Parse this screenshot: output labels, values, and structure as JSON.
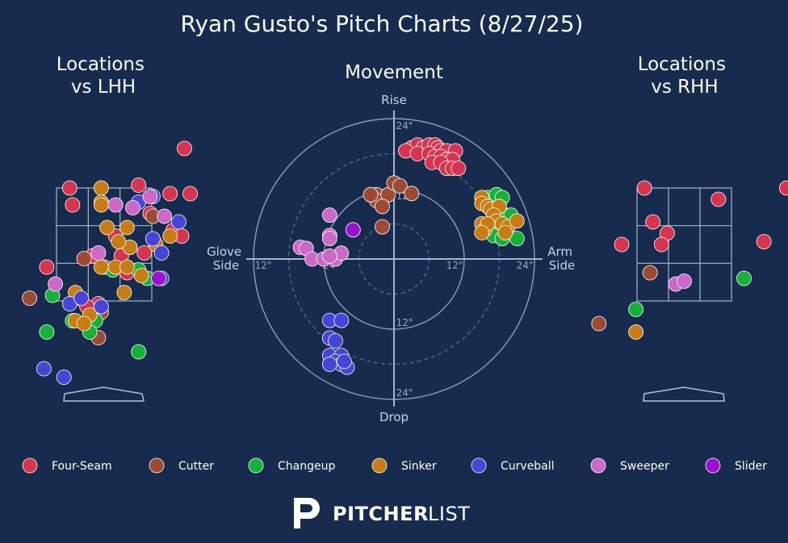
{
  "title": "Ryan Gusto's Pitch Charts (8/27/25)",
  "brand": {
    "bold": "PITCHER",
    "light": "LIST"
  },
  "colors": {
    "background": "#162b4d",
    "Four-Seam": "#d7344f",
    "Cutter": "#9c4a34",
    "Changeup": "#16b238",
    "Sinker": "#c77d12",
    "Curveball": "#4645d8",
    "Sweeper": "#cc68c8",
    "Slider": "#9a12cf"
  },
  "legend": [
    "Four-Seam",
    "Cutter",
    "Changeup",
    "Sinker",
    "Curveball",
    "Sweeper",
    "Slider"
  ],
  "chart_data": [
    {
      "type": "scatter",
      "title": "Locations\nvs LHH",
      "xlim": [
        -2.5,
        2.5
      ],
      "ylim": [
        -0.5,
        5.0
      ],
      "points": [
        {
          "pitch": "Four-Seam",
          "x": 1.4,
          "y": 4.2
        },
        {
          "pitch": "Four-Seam",
          "x": 0.6,
          "y": 3.55
        },
        {
          "pitch": "Four-Seam",
          "x": -0.6,
          "y": 3.5
        },
        {
          "pitch": "Four-Seam",
          "x": 1.15,
          "y": 3.4
        },
        {
          "pitch": "Four-Seam",
          "x": -0.55,
          "y": 3.2
        },
        {
          "pitch": "Four-Seam",
          "x": 0.8,
          "y": 3.05
        },
        {
          "pitch": "Four-Seam",
          "x": 1.5,
          "y": 3.4
        },
        {
          "pitch": "Four-Seam",
          "x": 0.2,
          "y": 2.65
        },
        {
          "pitch": "Four-Seam",
          "x": 0.45,
          "y": 2.45
        },
        {
          "pitch": "Four-Seam",
          "x": 0.7,
          "y": 2.35
        },
        {
          "pitch": "Four-Seam",
          "x": 0.3,
          "y": 2.3
        },
        {
          "pitch": "Four-Seam",
          "x": -0.2,
          "y": 2.3
        },
        {
          "pitch": "Four-Seam",
          "x": -1.0,
          "y": 2.1
        },
        {
          "pitch": "Four-Seam",
          "x": 0.0,
          "y": 2.1
        },
        {
          "pitch": "Four-Seam",
          "x": 0.4,
          "y": 2.0
        },
        {
          "pitch": "Four-Seam",
          "x": 1.2,
          "y": 2.75
        },
        {
          "pitch": "Four-Seam",
          "x": 1.35,
          "y": 2.65
        },
        {
          "pitch": "Four-Seam",
          "x": -0.45,
          "y": 1.55
        },
        {
          "pitch": "Four-Seam",
          "x": -0.1,
          "y": 1.45
        },
        {
          "pitch": "Four-Seam",
          "x": -0.3,
          "y": 1.4
        },
        {
          "pitch": "Cutter",
          "x": -0.35,
          "y": 2.25
        },
        {
          "pitch": "Cutter",
          "x": 0.85,
          "y": 3.0
        },
        {
          "pitch": "Cutter",
          "x": -1.3,
          "y": 1.55
        },
        {
          "pitch": "Cutter",
          "x": -0.05,
          "y": 1.3
        },
        {
          "pitch": "Cutter",
          "x": -0.1,
          "y": 0.85
        },
        {
          "pitch": "Changeup",
          "x": 0.75,
          "y": 1.9
        },
        {
          "pitch": "Changeup",
          "x": 0.6,
          "y": 2.05
        },
        {
          "pitch": "Changeup",
          "x": 0.15,
          "y": 2.05
        },
        {
          "pitch": "Changeup",
          "x": -0.9,
          "y": 1.6
        },
        {
          "pitch": "Changeup",
          "x": -0.15,
          "y": 1.15
        },
        {
          "pitch": "Changeup",
          "x": -0.55,
          "y": 1.15
        },
        {
          "pitch": "Changeup",
          "x": -1.0,
          "y": 0.95
        },
        {
          "pitch": "Changeup",
          "x": -0.25,
          "y": 0.95
        },
        {
          "pitch": "Changeup",
          "x": 0.6,
          "y": 0.6
        },
        {
          "pitch": "Sinker",
          "x": -0.05,
          "y": 3.5
        },
        {
          "pitch": "Sinker",
          "x": -0.05,
          "y": 3.25
        },
        {
          "pitch": "Sinker",
          "x": -0.05,
          "y": 3.2
        },
        {
          "pitch": "Sinker",
          "x": 0.05,
          "y": 2.8
        },
        {
          "pitch": "Sinker",
          "x": 0.4,
          "y": 2.8
        },
        {
          "pitch": "Sinker",
          "x": 0.45,
          "y": 2.45
        },
        {
          "pitch": "Sinker",
          "x": 1.15,
          "y": 2.65
        },
        {
          "pitch": "Sinker",
          "x": 0.9,
          "y": 2.5
        },
        {
          "pitch": "Sinker",
          "x": 0.25,
          "y": 2.55
        },
        {
          "pitch": "Sinker",
          "x": -0.05,
          "y": 2.1
        },
        {
          "pitch": "Sinker",
          "x": 0.2,
          "y": 2.1
        },
        {
          "pitch": "Sinker",
          "x": 0.4,
          "y": 2.1
        },
        {
          "pitch": "Sinker",
          "x": 0.65,
          "y": 1.95
        },
        {
          "pitch": "Sinker",
          "x": -0.5,
          "y": 1.65
        },
        {
          "pitch": "Sinker",
          "x": 0.35,
          "y": 1.65
        },
        {
          "pitch": "Sinker",
          "x": -0.25,
          "y": 1.25
        },
        {
          "pitch": "Sinker",
          "x": -0.5,
          "y": 1.15
        },
        {
          "pitch": "Sinker",
          "x": -0.35,
          "y": 1.1
        },
        {
          "pitch": "Curveball",
          "x": 0.6,
          "y": 3.25
        },
        {
          "pitch": "Curveball",
          "x": 0.85,
          "y": 3.35
        },
        {
          "pitch": "Curveball",
          "x": 0.85,
          "y": 2.6
        },
        {
          "pitch": "Curveball",
          "x": 1.0,
          "y": 2.35
        },
        {
          "pitch": "Curveball",
          "x": 1.3,
          "y": 2.9
        },
        {
          "pitch": "Curveball",
          "x": 1.0,
          "y": 1.9
        },
        {
          "pitch": "Curveball",
          "x": -0.6,
          "y": 1.45
        },
        {
          "pitch": "Curveball",
          "x": -0.4,
          "y": 1.55
        },
        {
          "pitch": "Curveball",
          "x": -0.05,
          "y": 1.4
        },
        {
          "pitch": "Curveball",
          "x": -0.7,
          "y": 0.15
        },
        {
          "pitch": "Curveball",
          "x": -1.05,
          "y": 0.3
        },
        {
          "pitch": "Sweeper",
          "x": 0.8,
          "y": 3.35
        },
        {
          "pitch": "Sweeper",
          "x": 0.5,
          "y": 3.15
        },
        {
          "pitch": "Sweeper",
          "x": 0.2,
          "y": 3.2
        },
        {
          "pitch": "Sweeper",
          "x": 1.05,
          "y": 3.0
        },
        {
          "pitch": "Sweeper",
          "x": -0.1,
          "y": 2.35
        },
        {
          "pitch": "Sweeper",
          "x": -0.85,
          "y": 1.8
        },
        {
          "pitch": "Slider",
          "x": 0.95,
          "y": 1.9
        }
      ]
    },
    {
      "type": "scatter",
      "title": "Movement",
      "xlabel_left": "Glove\nSide",
      "xlabel_right": "Arm\nSide",
      "ylabel_top": "Rise",
      "ylabel_bottom": "Drop",
      "ring_labels": [
        "24\"",
        "12\"",
        "12\"",
        "24\"",
        "12\"",
        "24\"",
        "12\"",
        "24\""
      ],
      "range_inches": 24,
      "points": [
        {
          "pitch": "Four-Seam",
          "x": 3,
          "y": 19
        },
        {
          "pitch": "Four-Seam",
          "x": 4,
          "y": 19.5
        },
        {
          "pitch": "Four-Seam",
          "x": 5,
          "y": 19
        },
        {
          "pitch": "Four-Seam",
          "x": 6,
          "y": 19.5
        },
        {
          "pitch": "Four-Seam",
          "x": 7,
          "y": 19.5
        },
        {
          "pitch": "Four-Seam",
          "x": 7.5,
          "y": 19
        },
        {
          "pitch": "Four-Seam",
          "x": 8,
          "y": 18.5
        },
        {
          "pitch": "Four-Seam",
          "x": 9,
          "y": 18.5
        },
        {
          "pitch": "Four-Seam",
          "x": 10.5,
          "y": 18.5
        },
        {
          "pitch": "Four-Seam",
          "x": 2,
          "y": 18.5
        },
        {
          "pitch": "Four-Seam",
          "x": 4,
          "y": 18
        },
        {
          "pitch": "Four-Seam",
          "x": 6,
          "y": 18
        },
        {
          "pitch": "Four-Seam",
          "x": 7,
          "y": 17.5
        },
        {
          "pitch": "Four-Seam",
          "x": 8,
          "y": 17.5
        },
        {
          "pitch": "Four-Seam",
          "x": 9,
          "y": 17
        },
        {
          "pitch": "Four-Seam",
          "x": 10,
          "y": 17
        },
        {
          "pitch": "Four-Seam",
          "x": 6.5,
          "y": 16.5
        },
        {
          "pitch": "Four-Seam",
          "x": 8,
          "y": 16.5
        },
        {
          "pitch": "Four-Seam",
          "x": 9,
          "y": 15.5
        },
        {
          "pitch": "Four-Seam",
          "x": 10,
          "y": 15.5
        },
        {
          "pitch": "Four-Seam",
          "x": 11,
          "y": 15.5
        },
        {
          "pitch": "Cutter",
          "x": -3,
          "y": 11
        },
        {
          "pitch": "Cutter",
          "x": -3,
          "y": 10
        },
        {
          "pitch": "Cutter",
          "x": -4,
          "y": 11
        },
        {
          "pitch": "Cutter",
          "x": -1,
          "y": 11
        },
        {
          "pitch": "Cutter",
          "x": 0,
          "y": 13
        },
        {
          "pitch": "Cutter",
          "x": 1,
          "y": 12.5
        },
        {
          "pitch": "Cutter",
          "x": 3,
          "y": 11.2
        },
        {
          "pitch": "Cutter",
          "x": -2,
          "y": 9
        },
        {
          "pitch": "Cutter",
          "x": -2,
          "y": 5.5
        },
        {
          "pitch": "Changeup",
          "x": 16,
          "y": 10.5
        },
        {
          "pitch": "Changeup",
          "x": 17.5,
          "y": 11
        },
        {
          "pitch": "Changeup",
          "x": 18.5,
          "y": 10.5
        },
        {
          "pitch": "Changeup",
          "x": 18,
          "y": 8
        },
        {
          "pitch": "Changeup",
          "x": 19,
          "y": 7.5
        },
        {
          "pitch": "Changeup",
          "x": 20,
          "y": 7.5
        },
        {
          "pitch": "Changeup",
          "x": 17,
          "y": 4
        },
        {
          "pitch": "Changeup",
          "x": 18.5,
          "y": 3.5
        },
        {
          "pitch": "Changeup",
          "x": 21,
          "y": 3.5
        },
        {
          "pitch": "Sinker",
          "x": 15,
          "y": 10.5
        },
        {
          "pitch": "Sinker",
          "x": 15,
          "y": 9.5
        },
        {
          "pitch": "Sinker",
          "x": 16,
          "y": 9
        },
        {
          "pitch": "Sinker",
          "x": 16.5,
          "y": 8.5
        },
        {
          "pitch": "Sinker",
          "x": 18,
          "y": 9
        },
        {
          "pitch": "Sinker",
          "x": 17,
          "y": 7.5
        },
        {
          "pitch": "Sinker",
          "x": 17.5,
          "y": 6.5
        },
        {
          "pitch": "Sinker",
          "x": 18.5,
          "y": 6
        },
        {
          "pitch": "Sinker",
          "x": 19.5,
          "y": 5.5
        },
        {
          "pitch": "Sinker",
          "x": 21,
          "y": 6.5
        },
        {
          "pitch": "Sinker",
          "x": 15,
          "y": 6
        },
        {
          "pitch": "Sinker",
          "x": 15.5,
          "y": 5
        },
        {
          "pitch": "Sinker",
          "x": 16,
          "y": 6
        },
        {
          "pitch": "Sinker",
          "x": 15,
          "y": 4.5
        },
        {
          "pitch": "Sinker",
          "x": 19,
          "y": 4.5
        },
        {
          "pitch": "Curveball",
          "x": -11,
          "y": -10.5
        },
        {
          "pitch": "Curveball",
          "x": -9,
          "y": -10.5
        },
        {
          "pitch": "Curveball",
          "x": -11,
          "y": -13.5
        },
        {
          "pitch": "Curveball",
          "x": -10,
          "y": -14
        },
        {
          "pitch": "Curveball",
          "x": -11,
          "y": -16.5
        },
        {
          "pitch": "Curveball",
          "x": -9,
          "y": -16.5
        },
        {
          "pitch": "Curveball",
          "x": -10,
          "y": -17.5
        },
        {
          "pitch": "Curveball",
          "x": -9,
          "y": -18
        },
        {
          "pitch": "Curveball",
          "x": -11,
          "y": -18
        },
        {
          "pitch": "Curveball",
          "x": -8,
          "y": -18.5
        },
        {
          "pitch": "Curveball",
          "x": -8.5,
          "y": -17.5
        },
        {
          "pitch": "Sweeper",
          "x": -11,
          "y": 7.5
        },
        {
          "pitch": "Sweeper",
          "x": -11,
          "y": 4
        },
        {
          "pitch": "Sweeper",
          "x": -11,
          "y": 3.5
        },
        {
          "pitch": "Sweeper",
          "x": -16,
          "y": 2
        },
        {
          "pitch": "Sweeper",
          "x": -15,
          "y": 1.8
        },
        {
          "pitch": "Sweeper",
          "x": -14,
          "y": 0
        },
        {
          "pitch": "Sweeper",
          "x": -12,
          "y": 0
        },
        {
          "pitch": "Sweeper",
          "x": -10,
          "y": 0
        },
        {
          "pitch": "Sweeper",
          "x": -9,
          "y": 1
        },
        {
          "pitch": "Sweeper",
          "x": -11,
          "y": 0.5
        },
        {
          "pitch": "Slider",
          "x": -7,
          "y": 5
        }
      ]
    },
    {
      "type": "scatter",
      "title": "Locations\nvs RHH",
      "xlim": [
        -2.5,
        2.5
      ],
      "ylim": [
        -0.5,
        5.0
      ],
      "points": [
        {
          "pitch": "Four-Seam",
          "x": -0.7,
          "y": 3.5
        },
        {
          "pitch": "Four-Seam",
          "x": 0.6,
          "y": 3.3
        },
        {
          "pitch": "Four-Seam",
          "x": 1.8,
          "y": 3.5
        },
        {
          "pitch": "Four-Seam",
          "x": -0.55,
          "y": 2.9
        },
        {
          "pitch": "Four-Seam",
          "x": -0.3,
          "y": 2.7
        },
        {
          "pitch": "Four-Seam",
          "x": -1.1,
          "y": 2.5
        },
        {
          "pitch": "Four-Seam",
          "x": -0.4,
          "y": 2.5
        },
        {
          "pitch": "Four-Seam",
          "x": 1.4,
          "y": 2.55
        },
        {
          "pitch": "Cutter",
          "x": -0.6,
          "y": 2.0
        },
        {
          "pitch": "Cutter",
          "x": -1.5,
          "y": 1.1
        },
        {
          "pitch": "Changeup",
          "x": 1.05,
          "y": 1.9
        },
        {
          "pitch": "Changeup",
          "x": -0.85,
          "y": 1.35
        },
        {
          "pitch": "Sinker",
          "x": -0.85,
          "y": 0.95
        },
        {
          "pitch": "Sweeper",
          "x": -0.15,
          "y": 1.8
        },
        {
          "pitch": "Sweeper",
          "x": 0.0,
          "y": 1.85
        },
        {
          "pitch": "Sweeper",
          "x": 2.3,
          "y": 3.45
        }
      ]
    }
  ]
}
